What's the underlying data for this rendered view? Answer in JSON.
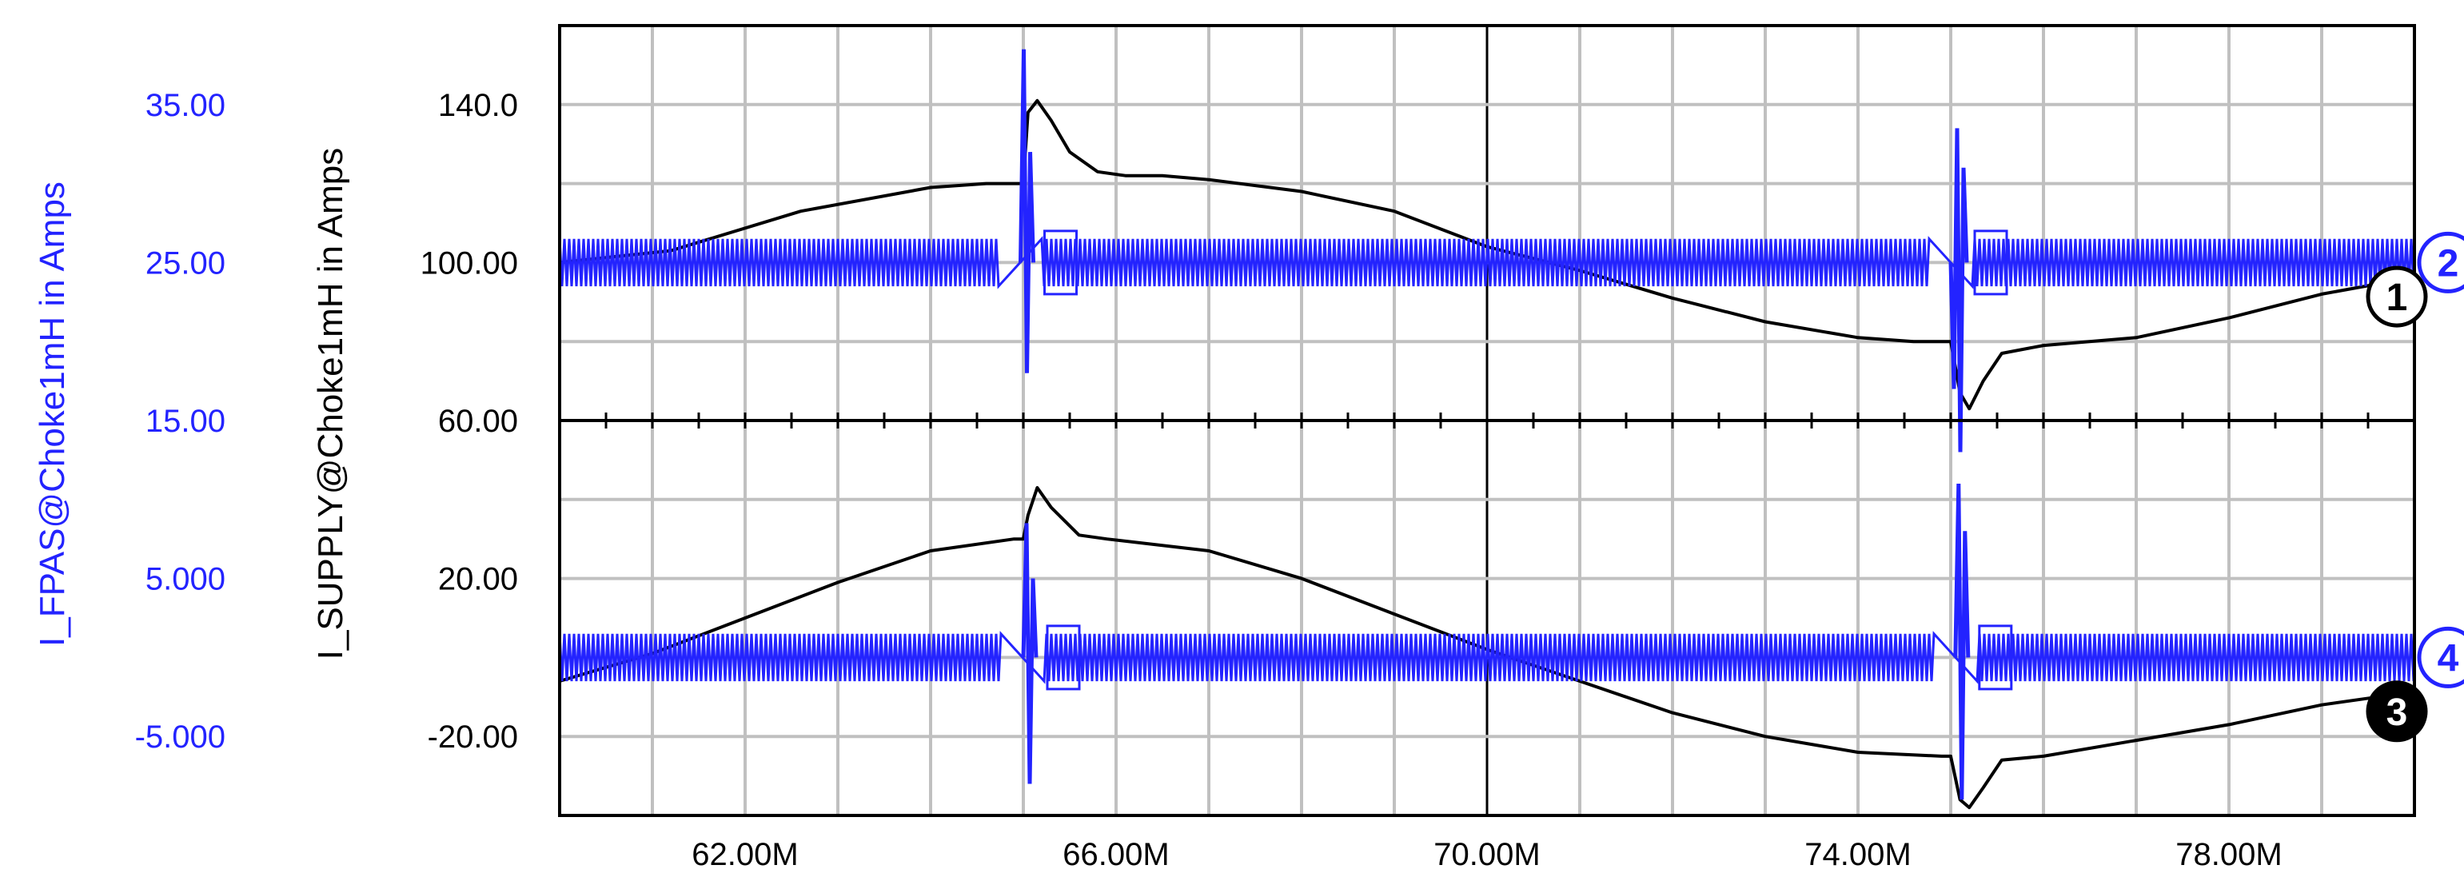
{
  "chart_data": {
    "type": "line",
    "x_unit": "M",
    "xlim": [
      60,
      80
    ],
    "x_ticks": [
      62,
      66,
      70,
      74,
      78
    ],
    "x_tick_labels": [
      "62.00M",
      "66.00M",
      "70.00M",
      "74.00M",
      "78.00M"
    ],
    "ylabel_left_outer": "I_FPAS@Choke1mH in Amps",
    "ylabel_left_inner": "I_SUPPLY@Choke1mH in Amps",
    "outer_ylim": [
      -10,
      40
    ],
    "outer_ticks": [
      35,
      25,
      15,
      5,
      -5
    ],
    "outer_tick_labels": [
      "35.00",
      "25.00",
      "15.00",
      "5.000",
      "-5.000"
    ],
    "inner_ylim": [
      -40,
      160
    ],
    "inner_ticks": [
      140,
      100,
      60,
      20,
      -20
    ],
    "inner_tick_labels": [
      "140.0",
      "100.00",
      "60.00",
      "20.00",
      "-20.00"
    ],
    "grid": true,
    "separator_value": 60,
    "colors": {
      "black_trace": "#000000",
      "blue_trace": "#2323ff",
      "outer_axis_text": "#2323ff",
      "inner_axis_text": "#000000",
      "grid": "#c0c0c0"
    },
    "series": [
      {
        "marker": "1",
        "color": "black",
        "axis": "inner",
        "points": [
          [
            60,
            100
          ],
          [
            61.2,
            103
          ],
          [
            62.6,
            113
          ],
          [
            64,
            119
          ],
          [
            64.6,
            120
          ],
          [
            65.0,
            120
          ],
          [
            65.05,
            138
          ],
          [
            65.15,
            141
          ],
          [
            65.3,
            136
          ],
          [
            65.5,
            128
          ],
          [
            65.8,
            123
          ],
          [
            66.1,
            122
          ],
          [
            66.5,
            122
          ],
          [
            67,
            121
          ],
          [
            68,
            118
          ],
          [
            69,
            113
          ],
          [
            70,
            104
          ],
          [
            71,
            98
          ],
          [
            72,
            91
          ],
          [
            73,
            85
          ],
          [
            74,
            81
          ],
          [
            74.6,
            80
          ],
          [
            75.0,
            80
          ],
          [
            75.1,
            67
          ],
          [
            75.2,
            63
          ],
          [
            75.35,
            70
          ],
          [
            75.55,
            77
          ],
          [
            76,
            79
          ],
          [
            77,
            81
          ],
          [
            78,
            86
          ],
          [
            79,
            92
          ],
          [
            79.7,
            95
          ],
          [
            80,
            95
          ]
        ]
      },
      {
        "marker": "2",
        "color": "blue",
        "axis": "outer",
        "baseline": 25,
        "noise_amplitude": 1.5,
        "spikes": [
          {
            "x": 64.97,
            "levels": [
              25,
              38.5,
              18,
              32,
              25
            ]
          },
          {
            "x": 75.0,
            "levels": [
              25,
              17,
              33.5,
              13,
              31,
              25
            ]
          }
        ]
      },
      {
        "marker": "3",
        "color": "black",
        "axis": "inner",
        "points": [
          [
            60,
            -6
          ],
          [
            61,
            1
          ],
          [
            62,
            10
          ],
          [
            63,
            19
          ],
          [
            64,
            27
          ],
          [
            64.9,
            30
          ],
          [
            65.0,
            30
          ],
          [
            65.05,
            36
          ],
          [
            65.15,
            43
          ],
          [
            65.3,
            38
          ],
          [
            65.6,
            31
          ],
          [
            65.9,
            30
          ],
          [
            67,
            27
          ],
          [
            68,
            20
          ],
          [
            69,
            11
          ],
          [
            70,
            2
          ],
          [
            71,
            -6
          ],
          [
            72,
            -14
          ],
          [
            73,
            -20
          ],
          [
            74,
            -24
          ],
          [
            74.9,
            -25
          ],
          [
            75.0,
            -25
          ],
          [
            75.1,
            -36
          ],
          [
            75.2,
            -38
          ],
          [
            75.35,
            -33
          ],
          [
            75.55,
            -26
          ],
          [
            76,
            -25
          ],
          [
            77,
            -21
          ],
          [
            78,
            -17
          ],
          [
            79,
            -12
          ],
          [
            79.6,
            -10
          ],
          [
            80,
            -10
          ]
        ]
      },
      {
        "marker": "4",
        "color": "blue",
        "axis": "outer",
        "baseline": 0,
        "noise_amplitude": 1.5,
        "spikes": [
          {
            "x": 65.0,
            "levels": [
              0,
              8.5,
              -8,
              5,
              0
            ]
          },
          {
            "x": 75.05,
            "levels": [
              0,
              11,
              -9,
              8,
              0
            ]
          }
        ]
      }
    ]
  }
}
